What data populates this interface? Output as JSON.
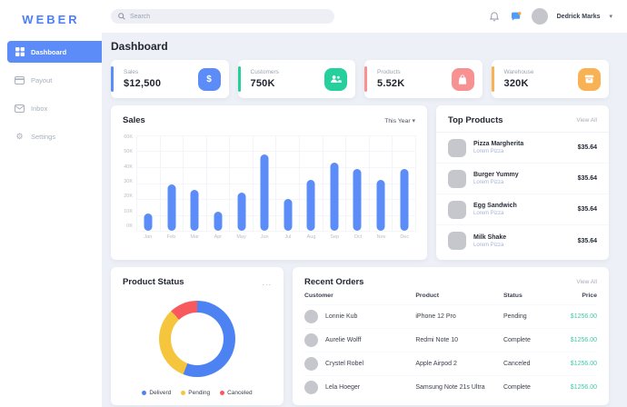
{
  "brand": {
    "logo": "WEBER",
    "color": "#4d7ef7"
  },
  "sidebar": {
    "items": [
      {
        "label": "Dashboard",
        "icon": "dashboard-grid-icon",
        "active": true
      },
      {
        "label": "Payout",
        "icon": "payout-card-icon",
        "active": false
      },
      {
        "label": "Inbox",
        "icon": "inbox-envelope-icon",
        "active": false
      },
      {
        "label": "Settings",
        "icon": "settings-gear-icon",
        "active": false
      }
    ]
  },
  "topbar": {
    "search_placeholder": "Search",
    "user_name": "Dedrick Marks",
    "icons": [
      "bell-icon",
      "messages-icon"
    ]
  },
  "page_title": "Dashboard",
  "stats": [
    {
      "label": "Sales",
      "value": "$12,500",
      "accent": "#5b8cf8",
      "icon": "dollar-icon"
    },
    {
      "label": "Customers",
      "value": "750K",
      "accent": "#26d09c",
      "icon": "customers-icon"
    },
    {
      "label": "Products",
      "value": "5.52K",
      "accent": "#f89191",
      "icon": "bag-icon"
    },
    {
      "label": "Warehouse",
      "value": "320K",
      "accent": "#f8b254",
      "icon": "box-icon"
    }
  ],
  "sales_card": {
    "title": "Sales",
    "filter_label": "This Year"
  },
  "top_products": {
    "title": "Top Products",
    "view_all": "View All",
    "items": [
      {
        "name": "Pizza Margherita",
        "subtitle": "Lorem Pizza",
        "price": "$35.64"
      },
      {
        "name": "Burger Yummy",
        "subtitle": "Lorem Pizza",
        "price": "$35.64"
      },
      {
        "name": "Egg Sandwich",
        "subtitle": "Lorem Pizza",
        "price": "$35.64"
      },
      {
        "name": "Milk Shake",
        "subtitle": "Lorem Pizza",
        "price": "$35.64"
      }
    ]
  },
  "product_status": {
    "title": "Product Status",
    "menu": "..."
  },
  "recent_orders": {
    "title": "Recent Orders",
    "view_all": "View All",
    "columns": [
      "Customer",
      "Product",
      "Status",
      "Price"
    ],
    "price_color": "#3fc9a7",
    "rows": [
      {
        "customer": "Lonnie Kub",
        "product": "iPhone 12 Pro",
        "status": "Pending",
        "price": "$1256.00"
      },
      {
        "customer": "Aurelie Wolff",
        "product": "Redmi Note 10",
        "status": "Complete",
        "price": "$1256.00"
      },
      {
        "customer": "Crystel Robel",
        "product": "Apple Airpod 2",
        "status": "Canceled",
        "price": "$1256.00"
      },
      {
        "customer": "Lela Hoeger",
        "product": "Samsung Note 21s Ultra",
        "status": "Complete",
        "price": "$1256.00"
      }
    ]
  },
  "chart_data": [
    {
      "type": "bar",
      "title": "Sales",
      "filter": "This Year",
      "categories": [
        "Jan",
        "Feb",
        "Mar",
        "Apr",
        "May",
        "Jun",
        "Jul",
        "Aug",
        "Sep",
        "Oct",
        "Nov",
        "Dec"
      ],
      "values": [
        11,
        29,
        26,
        12,
        24,
        48,
        20,
        32,
        43,
        39,
        32,
        39
      ],
      "unit": "K",
      "xlabel": "",
      "ylabel": "",
      "ylim": [
        0,
        60
      ],
      "yticks": [
        "0K",
        "10K",
        "20K",
        "30K",
        "40K",
        "50K",
        "60K"
      ],
      "bar_color": "#5b8cf8",
      "grid": true,
      "legend_position": "none"
    },
    {
      "type": "pie",
      "donut": true,
      "title": "Product Status",
      "labels": [
        "Deliverd",
        "Pending",
        "Canceled"
      ],
      "values": [
        56,
        32,
        12
      ],
      "colors": [
        "#4d82f3",
        "#f5c53d",
        "#f8595f"
      ],
      "legend_position": "bottom"
    }
  ]
}
